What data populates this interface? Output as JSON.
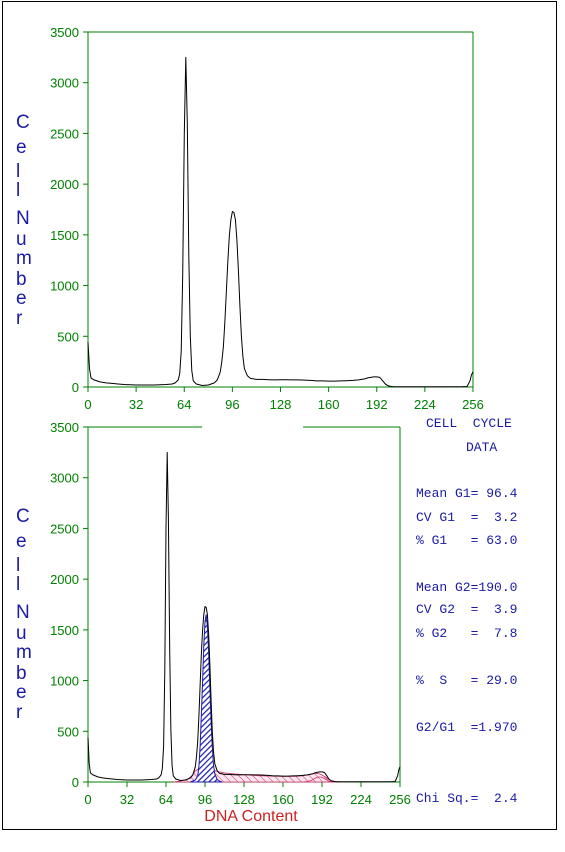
{
  "colors": {
    "axis": "#008000",
    "trace": "#000000",
    "ylabel": "#1a1aa6",
    "xlabel": "#cc2222",
    "g2_fill": "#1a1aa6",
    "s_fill": "#cc3366",
    "stats": "#1a1aa6"
  },
  "stats": {
    "title_line1": "CELL  CYCLE",
    "title_line2": "DATA",
    "lines": [
      "Mean G1= 96.4",
      "CV G1  =  3.2",
      "% G1   = 63.0",
      "Mean G2=190.0",
      "CV G2  =  3.9",
      "% G2   =  7.8",
      "%  S   = 29.0",
      "G2/G1  =1.970",
      "Chi Sq.=  2.4"
    ]
  },
  "chart_data": [
    {
      "type": "line",
      "title": "",
      "xlabel": "",
      "ylabel": "Cell Number",
      "xlim": [
        0,
        256
      ],
      "ylim": [
        0,
        3500
      ],
      "xticks": [
        0,
        32,
        64,
        96,
        128,
        160,
        192,
        224,
        256
      ],
      "yticks": [
        0,
        500,
        1000,
        1500,
        2000,
        2500,
        3000,
        3500
      ],
      "grid": false,
      "series": [
        {
          "x": [
            0,
            1,
            2,
            4,
            8,
            12,
            16,
            20,
            24,
            28,
            32,
            36,
            40,
            44,
            48,
            52,
            56,
            58,
            60,
            61,
            62,
            63,
            64,
            65,
            66,
            67,
            68,
            69,
            70,
            72,
            76,
            80,
            84,
            86,
            88,
            89,
            90,
            91,
            92,
            93,
            94,
            95,
            96,
            97,
            98,
            99,
            100,
            101,
            102,
            103,
            104,
            106,
            108,
            112,
            116,
            120,
            124,
            128,
            132,
            136,
            140,
            144,
            148,
            152,
            156,
            160,
            164,
            168,
            172,
            176,
            180,
            184,
            186,
            188,
            190,
            192,
            194,
            196,
            198,
            200,
            202,
            204,
            208,
            212,
            216,
            220,
            224,
            228,
            232,
            236,
            240,
            244,
            248,
            252,
            254,
            255,
            256
          ],
          "values": [
            440,
            180,
            90,
            70,
            50,
            40,
            35,
            30,
            25,
            22,
            20,
            20,
            20,
            20,
            22,
            25,
            30,
            40,
            70,
            130,
            350,
            1100,
            2500,
            3250,
            2600,
            1300,
            500,
            160,
            60,
            30,
            15,
            20,
            40,
            70,
            150,
            250,
            400,
            650,
            950,
            1250,
            1500,
            1650,
            1730,
            1720,
            1650,
            1450,
            1150,
            800,
            500,
            300,
            180,
            110,
            85,
            75,
            75,
            72,
            70,
            72,
            72,
            70,
            70,
            68,
            65,
            60,
            60,
            58,
            58,
            60,
            62,
            65,
            70,
            80,
            90,
            95,
            100,
            100,
            95,
            60,
            25,
            10,
            5,
            2,
            2,
            2,
            2,
            2,
            2,
            2,
            2,
            2,
            2,
            2,
            2,
            5,
            60,
            120,
            150
          ]
        }
      ]
    },
    {
      "type": "area",
      "title": "",
      "xlabel": "DNA Content",
      "ylabel": "Cell Number",
      "xlim": [
        0,
        256
      ],
      "ylim": [
        0,
        3500
      ],
      "xticks": [
        0,
        32,
        64,
        96,
        128,
        160,
        192,
        224,
        256
      ],
      "yticks": [
        0,
        500,
        1000,
        1500,
        2000,
        2500,
        3000,
        3500
      ],
      "grid": false,
      "series": [
        {
          "role": "histogram",
          "x": [
            0,
            1,
            2,
            4,
            8,
            12,
            16,
            20,
            24,
            28,
            32,
            36,
            40,
            44,
            48,
            52,
            56,
            58,
            60,
            61,
            62,
            63,
            64,
            65,
            66,
            67,
            68,
            69,
            70,
            72,
            76,
            80,
            84,
            86,
            88,
            89,
            90,
            91,
            92,
            93,
            94,
            95,
            96,
            97,
            98,
            99,
            100,
            101,
            102,
            103,
            104,
            106,
            108,
            112,
            116,
            120,
            124,
            128,
            132,
            136,
            140,
            144,
            148,
            152,
            156,
            160,
            164,
            168,
            172,
            176,
            180,
            184,
            186,
            188,
            190,
            192,
            194,
            196,
            198,
            200,
            202,
            204,
            208,
            212,
            216,
            220,
            224,
            228,
            232,
            236,
            240,
            244,
            248,
            252,
            254,
            255,
            256
          ],
          "values": [
            440,
            180,
            90,
            70,
            50,
            40,
            35,
            30,
            25,
            22,
            20,
            20,
            20,
            20,
            22,
            25,
            30,
            40,
            70,
            130,
            350,
            1100,
            2500,
            3250,
            2600,
            1300,
            500,
            160,
            60,
            30,
            15,
            20,
            40,
            70,
            150,
            250,
            400,
            650,
            950,
            1250,
            1500,
            1650,
            1730,
            1720,
            1650,
            1450,
            1150,
            800,
            500,
            300,
            180,
            110,
            85,
            75,
            75,
            72,
            70,
            72,
            72,
            70,
            70,
            68,
            65,
            60,
            60,
            58,
            58,
            60,
            62,
            65,
            70,
            80,
            90,
            95,
            100,
            100,
            95,
            60,
            25,
            10,
            5,
            2,
            2,
            2,
            2,
            2,
            2,
            2,
            2,
            2,
            2,
            2,
            2,
            5,
            60,
            120,
            150
          ]
        },
        {
          "role": "g2-fit",
          "x": [
            84,
            88,
            90,
            91,
            92,
            93,
            94,
            95,
            96,
            97,
            98,
            99,
            100,
            101,
            102,
            103,
            104,
            106,
            108,
            110
          ],
          "values": [
            0,
            20,
            60,
            150,
            350,
            650,
            1000,
            1350,
            1580,
            1650,
            1540,
            1270,
            930,
            600,
            340,
            170,
            80,
            25,
            8,
            0
          ]
        },
        {
          "role": "s-phase-fit",
          "x": [
            70,
            76,
            82,
            86,
            88,
            92,
            100,
            104,
            108,
            112,
            120,
            130,
            140,
            150,
            160,
            170,
            176,
            180,
            184,
            188,
            190,
            192,
            194,
            196,
            198,
            200,
            204,
            210
          ],
          "values": [
            0,
            10,
            30,
            70,
            110,
            140,
            120,
            110,
            100,
            90,
            80,
            70,
            62,
            58,
            55,
            55,
            60,
            70,
            80,
            85,
            80,
            70,
            55,
            40,
            25,
            12,
            3,
            0
          ]
        },
        {
          "role": "g2-peak-fit",
          "x": [
            176,
            180,
            184,
            186,
            188,
            190,
            192,
            194,
            196,
            198,
            200,
            204
          ],
          "values": [
            0,
            5,
            20,
            35,
            45,
            50,
            45,
            35,
            20,
            8,
            3,
            0
          ]
        }
      ]
    }
  ]
}
